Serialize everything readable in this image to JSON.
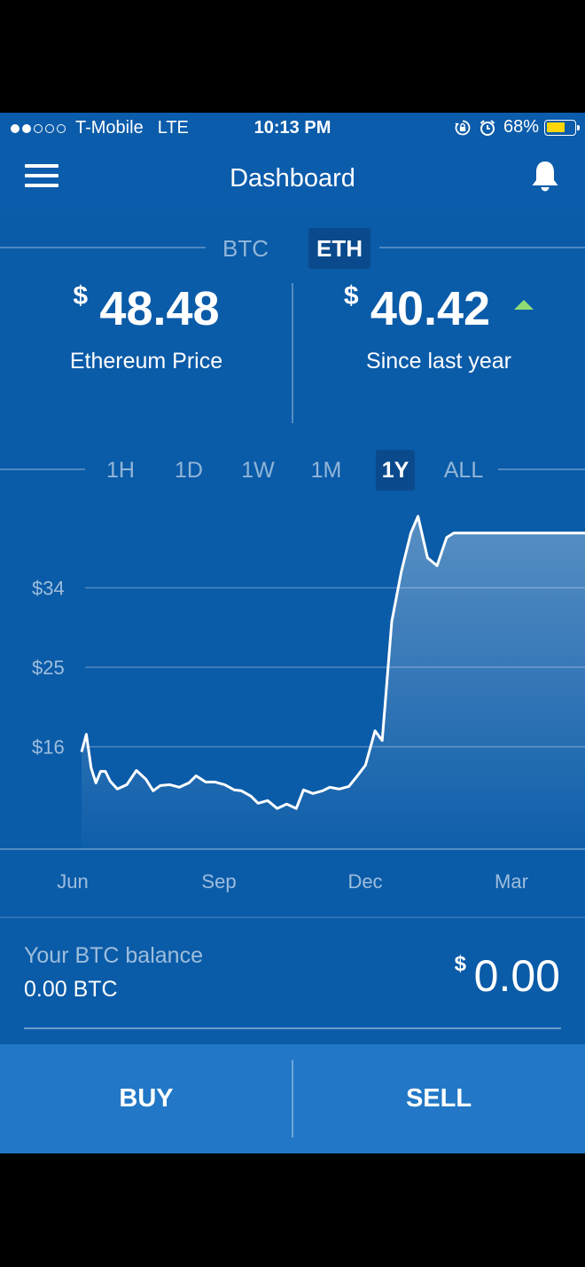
{
  "status_bar": {
    "signal_bars": 2,
    "carrier": "T-Mobile",
    "network": "LTE",
    "time": "10:13 PM",
    "battery_percent_text": "68%",
    "battery_level": 0.68,
    "battery_color": "#ffd60a"
  },
  "nav": {
    "title": "Dashboard",
    "menu_icon": "hamburger-menu-icon",
    "bell_icon": "bell-icon"
  },
  "currency_tabs": [
    {
      "label": "BTC",
      "active": false
    },
    {
      "label": "ETH",
      "active": true
    }
  ],
  "price": {
    "currency_symbol": "$",
    "value": "48.48",
    "label": "Ethereum Price"
  },
  "change": {
    "currency_symbol": "$",
    "value": "40.42",
    "label": "Since last year",
    "direction": "up",
    "color": "#8fdb75"
  },
  "range_tabs": [
    {
      "label": "1H",
      "active": false
    },
    {
      "label": "1D",
      "active": false
    },
    {
      "label": "1W",
      "active": false
    },
    {
      "label": "1M",
      "active": false
    },
    {
      "label": "1Y",
      "active": true
    },
    {
      "label": "ALL",
      "active": false
    }
  ],
  "chart_data": {
    "type": "area",
    "y_ticks": [
      "$34",
      "$25",
      "$16"
    ],
    "y_tick_values": [
      34,
      25,
      16
    ],
    "x_ticks": [
      "Jun",
      "Sep",
      "Dec",
      "Mar"
    ],
    "ylim": [
      4.4,
      44.6
    ],
    "grid": true,
    "line_color": "#ffffff",
    "series": [
      {
        "t": [
          0,
          2,
          4,
          6,
          8,
          10,
          12,
          15,
          19,
          23,
          27,
          30,
          33,
          37,
          41,
          45,
          48,
          52,
          56,
          60,
          64,
          67,
          71,
          74,
          78,
          82,
          86,
          90,
          93,
          97,
          101,
          104,
          108,
          112,
          115,
          119,
          123,
          126,
          130,
          134,
          138,
          141,
          145,
          149,
          153,
          156,
          160,
          164,
          168,
          171,
          175,
          179,
          182,
          185,
          188,
          191,
          194,
          196,
          198,
          200,
          202,
          205,
          208,
          211
        ],
        "values": [
          15.4,
          17.4,
          13.6,
          11.9,
          13.2,
          13.2,
          12.1,
          11.2,
          11.7,
          13.3,
          12.3,
          11.0,
          11.6,
          11.7,
          11.4,
          11.9,
          12.7,
          12.0,
          12.0,
          11.7,
          11.1,
          11.0,
          10.4,
          9.6,
          9.9,
          9.0,
          9.5,
          9.0,
          11.1,
          10.7,
          11.0,
          11.4,
          11.2,
          11.5,
          12.5,
          13.9,
          17.8,
          16.7,
          30.2,
          35.8,
          40.2,
          42.1,
          37.4,
          36.5,
          39.7,
          40.2,
          40.2,
          40.2,
          40.2,
          40.2,
          40.2,
          40.2,
          40.2,
          40.2,
          40.2,
          40.2,
          40.2,
          40.2,
          40.2,
          40.2,
          40.2,
          40.2,
          40.2,
          40.2
        ]
      }
    ]
  },
  "balance": {
    "label": "Your BTC balance",
    "btc_amount": "0.00 BTC",
    "currency_symbol": "$",
    "usd_amount": "0.00"
  },
  "actions": {
    "buy_label": "BUY",
    "sell_label": "SELL"
  }
}
